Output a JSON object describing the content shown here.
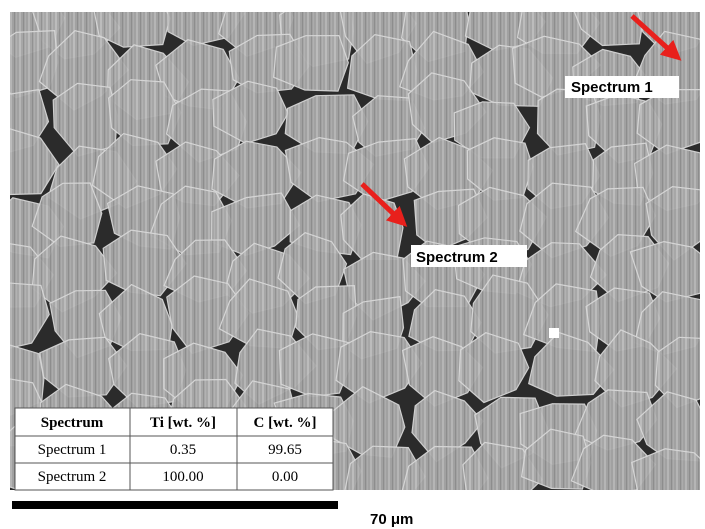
{
  "labels": [
    "Spectrum 1",
    "Spectrum 2"
  ],
  "table": {
    "header": [
      "Spectrum",
      "Ti [wt. %]",
      "C [wt. %]"
    ],
    "rows": [
      [
        "Spectrum 1",
        "0.35",
        "99.65"
      ],
      [
        "Spectrum 2",
        "100.00",
        "0.00"
      ]
    ]
  },
  "scale_bar": "70 μm"
}
